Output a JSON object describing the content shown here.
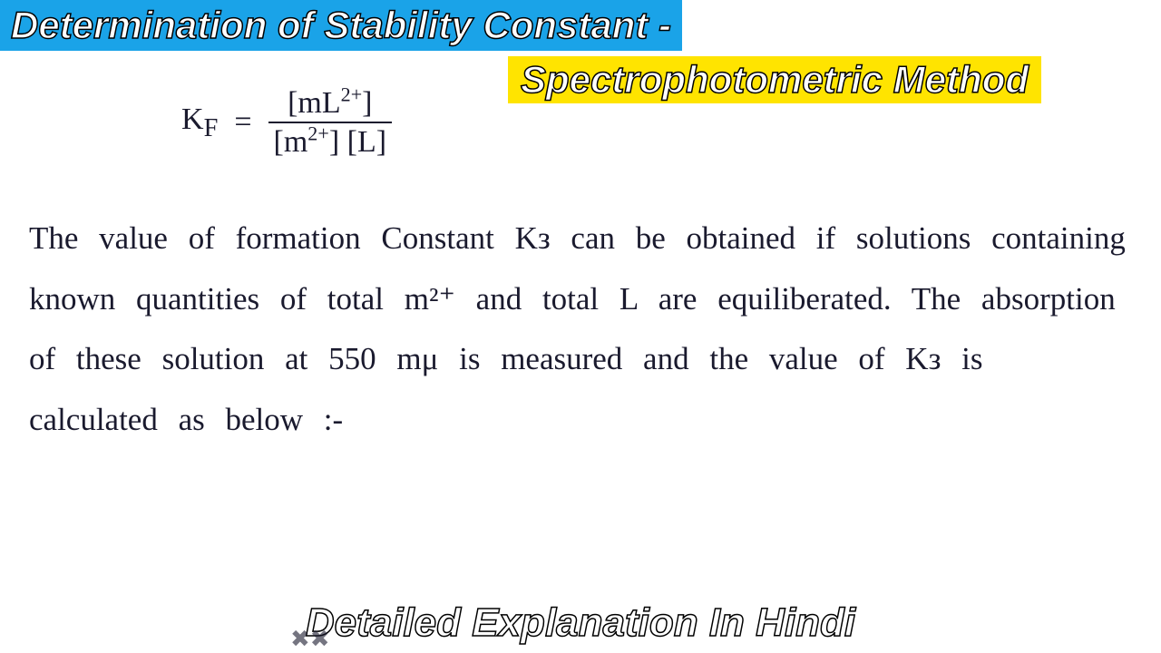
{
  "colors": {
    "title_bg": "#1aa3e8",
    "title_text": "#ffffff",
    "subtitle_bg": "#ffe400",
    "subtitle_text": "#ffffff",
    "ink": "#1a1a2e",
    "caption_text": "#ffffff",
    "stroke": "#000000",
    "page_bg": "#ffffff"
  },
  "typography": {
    "title_fontsize": 42,
    "body_fontsize": 35,
    "caption_fontsize": 44,
    "formula_fontsize": 34
  },
  "title": {
    "primary": "Determination of Stability Constant -",
    "subtitle": "Spectrophotometric Method"
  },
  "formula": {
    "lhs": "K",
    "lhs_sub": "F",
    "eq": "=",
    "numerator_open": "[mL",
    "numerator_sup": "2+",
    "numerator_close": "]",
    "denom_open": "[m",
    "denom_sup": "2+",
    "denom_mid": "] [L]"
  },
  "body": {
    "text": "The value of formation Constant Kᴈ can be obtained if solutions containing known quantities of total m²⁺ and total L are equiliberated. The absorption of these solution at 550 mμ is measured and the value of Kᴈ is calculated as below :-"
  },
  "caption": "Detailed Explanation In Hindi",
  "scribble": "✖✖"
}
